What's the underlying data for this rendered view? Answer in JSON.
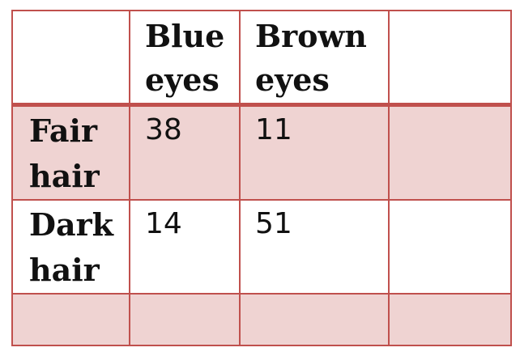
{
  "table": {
    "columns": [
      "",
      "Blue\neyes",
      "Brown\neyes",
      ""
    ],
    "header_lines": [
      [],
      [
        "Blue",
        "eyes"
      ],
      [
        "Brown",
        "eyes"
      ],
      []
    ],
    "rows": [
      {
        "header_lines": [
          "Fair",
          "hair"
        ],
        "cells": [
          "38",
          "11",
          ""
        ]
      },
      {
        "header_lines": [
          "Dark",
          "hair"
        ],
        "cells": [
          "14",
          "51",
          ""
        ]
      },
      {
        "header_lines": [],
        "cells": [
          "",
          "",
          ""
        ]
      }
    ],
    "colors": {
      "border": "#c0504d",
      "band_fill": "#efd3d2",
      "plain_fill": "#ffffff"
    }
  }
}
